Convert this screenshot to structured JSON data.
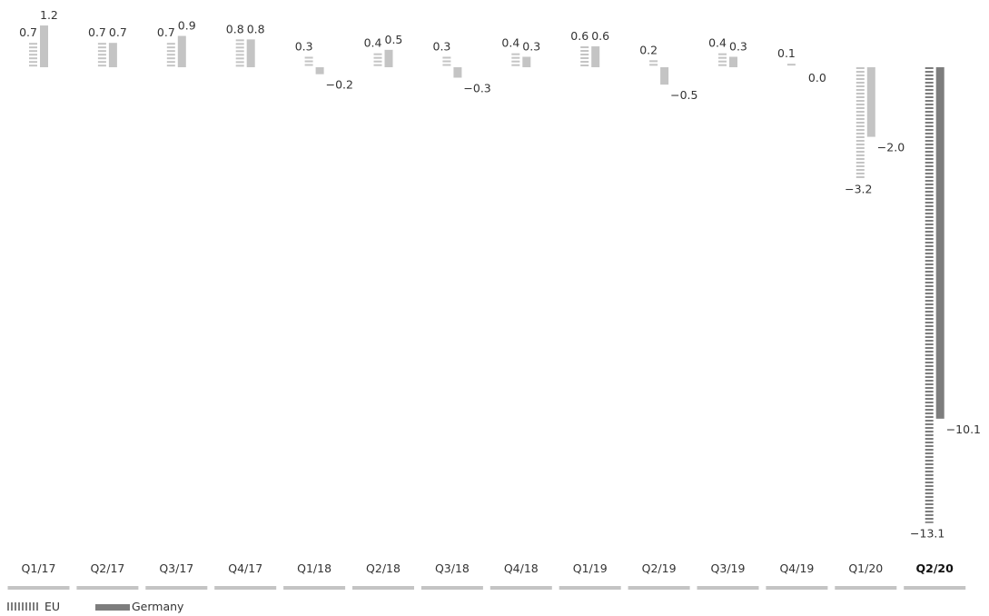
{
  "chart_data": {
    "type": "bar",
    "categories": [
      "Q1/17",
      "Q2/17",
      "Q3/17",
      "Q4/17",
      "Q1/18",
      "Q2/18",
      "Q3/18",
      "Q4/18",
      "Q1/19",
      "Q2/19",
      "Q3/19",
      "Q4/19",
      "Q1/20",
      "Q2/20"
    ],
    "highlight_category": "Q2/20",
    "series": [
      {
        "name": "EU",
        "values": [
          0.7,
          0.7,
          0.7,
          0.8,
          0.3,
          0.4,
          0.3,
          0.4,
          0.6,
          0.2,
          0.4,
          0.1,
          -3.2,
          -13.1
        ],
        "pattern": "striped"
      },
      {
        "name": "Germany",
        "values": [
          1.2,
          0.7,
          0.9,
          0.8,
          -0.2,
          0.5,
          -0.3,
          0.3,
          0.6,
          -0.5,
          0.3,
          0.0,
          -2.0,
          -10.1
        ],
        "pattern": "solid"
      }
    ],
    "value_labels": {
      "EU": [
        "0.7",
        "0.7",
        "0.7",
        "0.8",
        "0.3",
        "0.4",
        "0.3",
        "0.4",
        "0.6",
        "0.2",
        "0.4",
        "0.1",
        "−3.2",
        "−13.1"
      ],
      "Germany": [
        "1.2",
        "0.7",
        "0.9",
        "0.8",
        "−0.2",
        "0.5",
        "−0.3",
        "0.3",
        "0.6",
        "−0.5",
        "0.3",
        "0.0",
        "−2.0",
        "−10.1"
      ]
    },
    "title": "",
    "xlabel": "",
    "ylabel": "",
    "legend_position": "bottom-left",
    "grid": false,
    "colors": {
      "normal": "#c4c4c4",
      "highlight": "#7d7d7d",
      "baseline": "#c4c4c4",
      "legend": "#7d7d7d"
    }
  }
}
